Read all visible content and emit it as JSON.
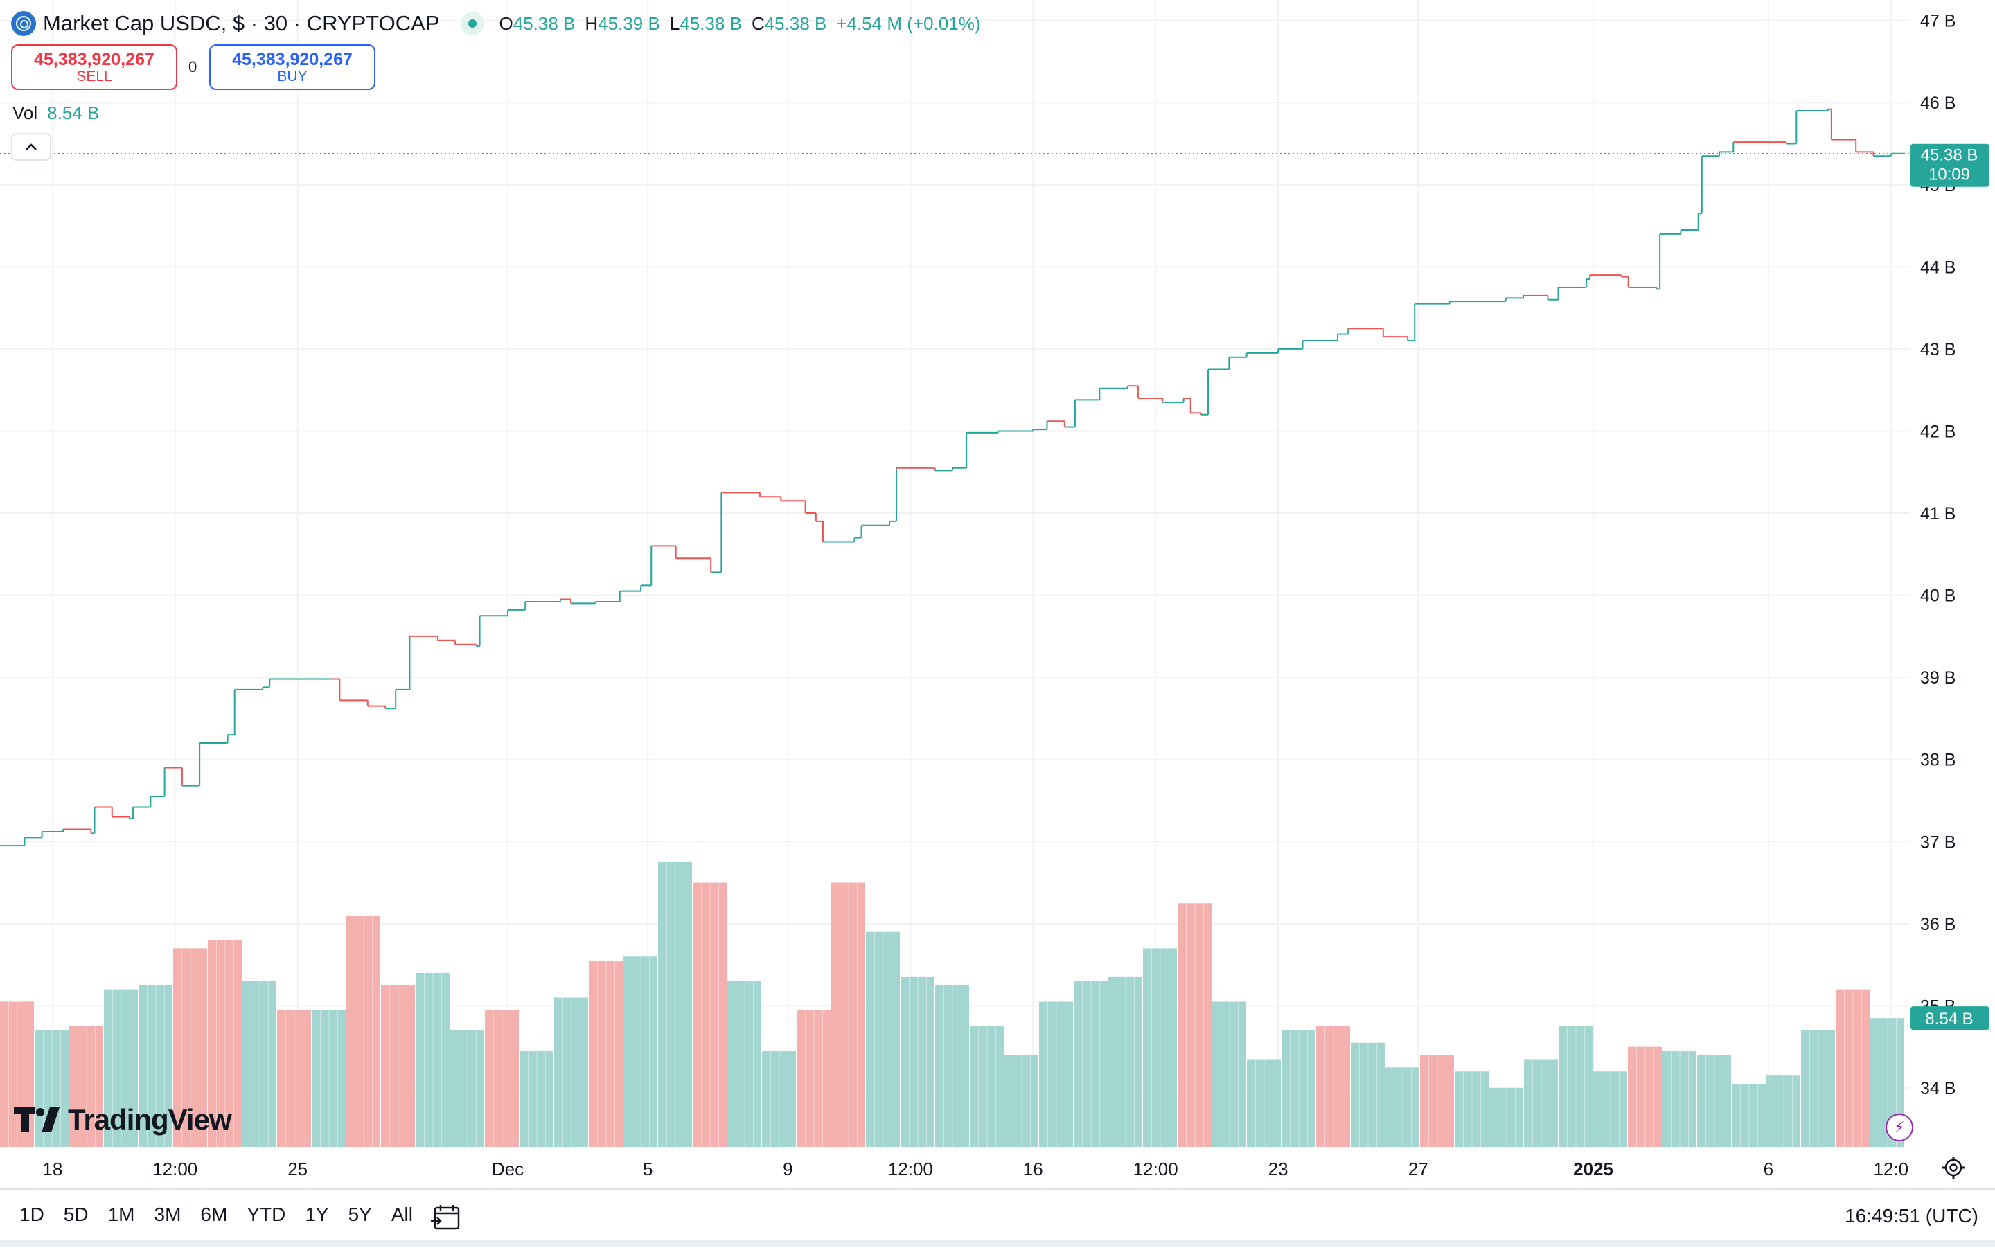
{
  "header": {
    "title": "Market Cap USDC, $ · 30 · CRYPTOCAP",
    "ohlc": [
      {
        "key": "O",
        "value": "45.38 B"
      },
      {
        "key": "H",
        "value": "45.39 B"
      },
      {
        "key": "L",
        "value": "45.38 B"
      },
      {
        "key": "C",
        "value": "45.38 B"
      }
    ],
    "change": "+4.54 M (+0.01%)",
    "symbol_icon": "usdc-logo-icon",
    "status_icon": "market-status-dot-icon"
  },
  "trade": {
    "sell_price": "45,383,920,267",
    "sell_label": "SELL",
    "spread": "0",
    "buy_price": "45,383,920,267",
    "buy_label": "BUY"
  },
  "volume_legend": {
    "label": "Vol",
    "value": "8.54 B"
  },
  "collapse_icon": "chevron-up-icon",
  "logo": {
    "text": "TradingView"
  },
  "bottom_bar": {
    "ranges": [
      "1D",
      "5D",
      "1M",
      "3M",
      "6M",
      "YTD",
      "1Y",
      "5Y",
      "All"
    ],
    "goto_icon": "calendar-goto-icon",
    "clock": "16:49:51 (UTC)"
  },
  "colors": {
    "up": "#26a69a",
    "down": "#ef5350",
    "vol_up": "#a3d6d0",
    "vol_down": "#f4b0ad",
    "grid": "#f0f2f5",
    "crosshair": "#26a69a"
  },
  "chart_data": {
    "type": "line",
    "title": "Market Cap USDC, $ · 30 · CRYPTOCAP",
    "xlabel": "",
    "ylabel": "",
    "ylim": [
      33.3,
      47.2
    ],
    "y_unit": "B",
    "y_ticks": [
      34,
      35,
      36,
      37,
      38,
      39,
      40,
      41,
      42,
      43,
      44,
      45,
      46,
      47
    ],
    "y_tick_labels": [
      "34 B",
      "35 B",
      "36 B",
      "37 B",
      "38 B",
      "39 B",
      "40 B",
      "41 B",
      "42 B",
      "43 B",
      "44 B",
      "45 B",
      "46 B",
      "47 B"
    ],
    "x_tick_labels": [
      {
        "label": "18",
        "bold": false,
        "t": 1.5
      },
      {
        "label": "12:00",
        "bold": false,
        "t": 5.0
      },
      {
        "label": "25",
        "bold": false,
        "t": 8.5
      },
      {
        "label": "Dec",
        "bold": false,
        "t": 14.5
      },
      {
        "label": "5",
        "bold": false,
        "t": 18.5
      },
      {
        "label": "9",
        "bold": false,
        "t": 22.5
      },
      {
        "label": "12:00",
        "bold": false,
        "t": 26.0
      },
      {
        "label": "16",
        "bold": false,
        "t": 29.5
      },
      {
        "label": "12:00",
        "bold": false,
        "t": 33.0
      },
      {
        "label": "23",
        "bold": false,
        "t": 36.5
      },
      {
        "label": "27",
        "bold": false,
        "t": 40.5
      },
      {
        "label": "2025",
        "bold": true,
        "t": 45.5
      },
      {
        "label": "6",
        "bold": false,
        "t": 50.5
      },
      {
        "label": "12:0",
        "bold": false,
        "t": 54.0
      }
    ],
    "x_range": [
      0,
      54.4
    ],
    "series": [
      {
        "values": [
          [
            0.0,
            36.95
          ],
          [
            0.7,
            37.05
          ],
          [
            1.2,
            37.12
          ],
          [
            1.8,
            37.15
          ],
          [
            2.6,
            37.1
          ],
          [
            2.7,
            37.42
          ],
          [
            3.2,
            37.3
          ],
          [
            3.7,
            37.28
          ],
          [
            3.8,
            37.42
          ],
          [
            4.3,
            37.55
          ],
          [
            4.7,
            37.9
          ],
          [
            5.2,
            37.68
          ],
          [
            5.7,
            38.2
          ],
          [
            6.5,
            38.3
          ],
          [
            6.7,
            38.85
          ],
          [
            7.5,
            38.88
          ],
          [
            7.7,
            38.98
          ],
          [
            9.5,
            38.98
          ],
          [
            9.7,
            38.72
          ],
          [
            10.5,
            38.65
          ],
          [
            11.0,
            38.62
          ],
          [
            11.3,
            38.85
          ],
          [
            11.7,
            39.5
          ],
          [
            12.5,
            39.45
          ],
          [
            13.0,
            39.4
          ],
          [
            13.6,
            39.38
          ],
          [
            13.7,
            39.75
          ],
          [
            14.5,
            39.82
          ],
          [
            15.0,
            39.92
          ],
          [
            16.0,
            39.95
          ],
          [
            16.3,
            39.9
          ],
          [
            17.0,
            39.92
          ],
          [
            17.7,
            40.05
          ],
          [
            18.3,
            40.12
          ],
          [
            18.6,
            40.6
          ],
          [
            19.3,
            40.45
          ],
          [
            20.3,
            40.28
          ],
          [
            20.6,
            41.25
          ],
          [
            21.7,
            41.2
          ],
          [
            22.3,
            41.15
          ],
          [
            23.0,
            41.0
          ],
          [
            23.3,
            40.9
          ],
          [
            23.5,
            40.65
          ],
          [
            24.4,
            40.7
          ],
          [
            24.6,
            40.85
          ],
          [
            25.4,
            40.9
          ],
          [
            25.6,
            41.55
          ],
          [
            26.7,
            41.52
          ],
          [
            27.2,
            41.55
          ],
          [
            27.6,
            41.98
          ],
          [
            28.5,
            42.0
          ],
          [
            29.5,
            42.02
          ],
          [
            29.9,
            42.12
          ],
          [
            30.4,
            42.05
          ],
          [
            30.7,
            42.38
          ],
          [
            31.4,
            42.52
          ],
          [
            32.2,
            42.55
          ],
          [
            32.5,
            42.4
          ],
          [
            33.2,
            42.35
          ],
          [
            33.8,
            42.4
          ],
          [
            34.0,
            42.22
          ],
          [
            34.3,
            42.2
          ],
          [
            34.5,
            42.75
          ],
          [
            35.1,
            42.9
          ],
          [
            35.6,
            42.95
          ],
          [
            36.5,
            43.0
          ],
          [
            37.0,
            43.0
          ],
          [
            37.2,
            43.1
          ],
          [
            38.2,
            43.18
          ],
          [
            38.5,
            43.25
          ],
          [
            39.5,
            43.15
          ],
          [
            40.2,
            43.1
          ],
          [
            40.4,
            43.55
          ],
          [
            41.4,
            43.58
          ],
          [
            43.0,
            43.62
          ],
          [
            43.5,
            43.65
          ],
          [
            44.2,
            43.6
          ],
          [
            44.5,
            43.75
          ],
          [
            45.3,
            43.85
          ],
          [
            45.4,
            43.9
          ],
          [
            46.3,
            43.88
          ],
          [
            46.5,
            43.75
          ],
          [
            47.3,
            43.73
          ],
          [
            47.4,
            44.4
          ],
          [
            48.0,
            44.45
          ],
          [
            48.5,
            44.65
          ],
          [
            48.6,
            45.35
          ],
          [
            49.1,
            45.4
          ],
          [
            49.5,
            45.52
          ],
          [
            51.0,
            45.5
          ],
          [
            51.3,
            45.9
          ],
          [
            52.2,
            45.92
          ],
          [
            52.3,
            45.55
          ],
          [
            53.0,
            45.4
          ],
          [
            53.5,
            45.35
          ],
          [
            54.0,
            45.38
          ],
          [
            54.4,
            45.38
          ]
        ]
      }
    ],
    "volume": {
      "value_labels_shown": [
        "8.54 B"
      ],
      "bars": [
        [
          35.05,
          "down"
        ],
        [
          34.7,
          "up"
        ],
        [
          34.75,
          "down"
        ],
        [
          35.2,
          "up"
        ],
        [
          35.25,
          "up"
        ],
        [
          35.7,
          "down"
        ],
        [
          35.8,
          "down"
        ],
        [
          35.3,
          "up"
        ],
        [
          34.95,
          "down"
        ],
        [
          34.95,
          "up"
        ],
        [
          36.1,
          "down"
        ],
        [
          35.25,
          "down"
        ],
        [
          35.4,
          "up"
        ],
        [
          34.7,
          "up"
        ],
        [
          34.95,
          "down"
        ],
        [
          34.45,
          "up"
        ],
        [
          35.1,
          "up"
        ],
        [
          35.55,
          "down"
        ],
        [
          35.6,
          "up"
        ],
        [
          36.75,
          "up"
        ],
        [
          36.5,
          "down"
        ],
        [
          35.3,
          "up"
        ],
        [
          34.45,
          "up"
        ],
        [
          34.95,
          "down"
        ],
        [
          36.5,
          "down"
        ],
        [
          35.9,
          "up"
        ],
        [
          35.35,
          "up"
        ],
        [
          35.25,
          "up"
        ],
        [
          34.75,
          "up"
        ],
        [
          34.4,
          "up"
        ],
        [
          35.05,
          "up"
        ],
        [
          35.3,
          "up"
        ],
        [
          35.35,
          "up"
        ],
        [
          35.7,
          "up"
        ],
        [
          36.25,
          "down"
        ],
        [
          35.05,
          "up"
        ],
        [
          34.35,
          "up"
        ],
        [
          34.7,
          "up"
        ],
        [
          34.75,
          "down"
        ],
        [
          34.55,
          "up"
        ],
        [
          34.25,
          "up"
        ],
        [
          34.4,
          "down"
        ],
        [
          34.2,
          "up"
        ],
        [
          34.0,
          "up"
        ],
        [
          34.35,
          "up"
        ],
        [
          34.75,
          "up"
        ],
        [
          34.2,
          "up"
        ],
        [
          34.5,
          "down"
        ],
        [
          34.45,
          "up"
        ],
        [
          34.4,
          "up"
        ],
        [
          34.05,
          "up"
        ],
        [
          34.15,
          "up"
        ],
        [
          34.7,
          "up"
        ],
        [
          35.2,
          "down"
        ],
        [
          34.85,
          "up"
        ]
      ]
    },
    "last_price": {
      "label": "45.38 B",
      "countdown": "10:09",
      "value": 45.38
    },
    "last_volume": {
      "label": "8.54 B",
      "value": 34.85
    },
    "grid": true,
    "legend": "none"
  }
}
